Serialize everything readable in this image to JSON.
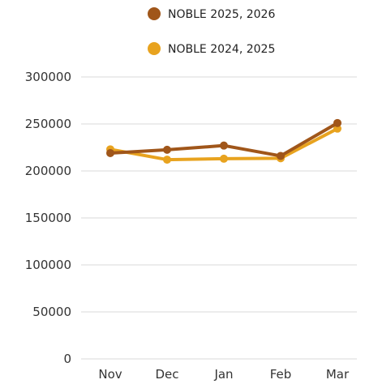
{
  "chart_data": {
    "type": "line",
    "title": "",
    "xlabel": "",
    "ylabel": "",
    "categories": [
      "Nov",
      "Dec",
      "Jan",
      "Feb",
      "Mar"
    ],
    "ylim": [
      0,
      300000
    ],
    "yticks": [
      0,
      50000,
      100000,
      150000,
      200000,
      250000,
      300000
    ],
    "grid": true,
    "legend": "top-center",
    "series": [
      {
        "name": "NOBLE 2025, 2026",
        "color": "#a0561a",
        "values": [
          219000,
          222500,
          227000,
          216000,
          251000
        ]
      },
      {
        "name": "NOBLE 2024, 2025",
        "color": "#e8a31f",
        "values": [
          223000,
          212000,
          213000,
          213500,
          245000
        ]
      }
    ]
  }
}
